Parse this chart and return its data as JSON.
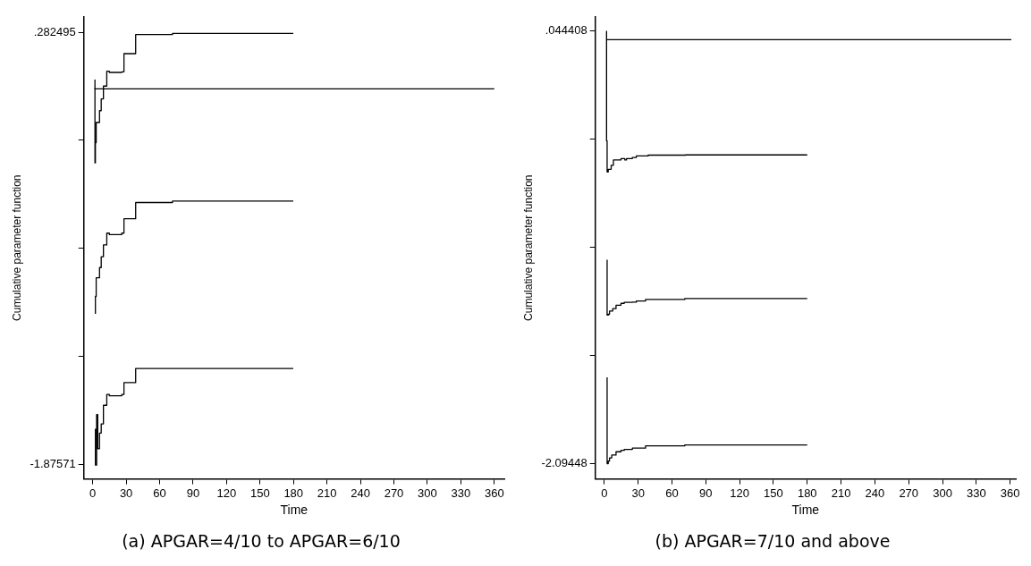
{
  "chart_data": [
    {
      "type": "step",
      "title": "(a) APGAR=4/10 to APGAR=6/10",
      "xlabel": "Time",
      "ylabel": "Cumulative parameter function",
      "xlim": [
        -8,
        369
      ],
      "xticks": [
        0,
        30,
        60,
        90,
        120,
        150,
        180,
        210,
        240,
        270,
        300,
        330,
        360
      ],
      "ylim": [
        -1.949,
        0.36
      ],
      "yticks": [
        {
          "value": -1.87571,
          "label": "-1.87571"
        },
        {
          "value": -1.33616,
          "label": null
        },
        {
          "value": -0.79661,
          "label": null
        },
        {
          "value": -0.25706,
          "label": null
        },
        {
          "value": 0.282495,
          "label": ".282495"
        }
      ],
      "grid": false,
      "series": [
        {
          "type": "line",
          "color": "#000000",
          "x": [
            1.5,
            360
          ],
          "values": [
            0,
            0
          ]
        },
        {
          "color": "#000000",
          "x": [
            2,
            2.4,
            3.1,
            6.1,
            7.6,
            9.6,
            12.6,
            14.9,
            26,
            28,
            38.5,
            71.5,
            81.8,
            179.8
          ],
          "values": [
            0.046,
            -0.37,
            -0.269,
            -0.168,
            -0.109,
            -0.05,
            0.014,
            0.088,
            0.082,
            0.085,
            0.176,
            0.271,
            0.277,
            0.277
          ]
        },
        {
          "color": "#000000",
          "x": [
            2.4,
            3.1,
            6.1,
            7.6,
            9.6,
            12.6,
            14.9,
            26,
            28,
            38.5,
            71.5,
            81.8,
            179.8
          ],
          "values": [
            -1.124,
            -1.037,
            -0.944,
            -0.893,
            -0.839,
            -0.78,
            -0.721,
            -0.728,
            -0.721,
            -0.649,
            -0.568,
            -0.561,
            -0.561
          ]
        },
        {
          "color": "#000000",
          "x": [
            2.4,
            3.5,
            4.5,
            6.1,
            7.6,
            9.6,
            12.6,
            14.9,
            26,
            28,
            38.5,
            71.5,
            179.8
          ],
          "values": [
            -1.698,
            -1.88,
            -1.627,
            -1.798,
            -1.72,
            -1.674,
            -1.581,
            -1.527,
            -1.534,
            -1.527,
            -1.468,
            -1.397,
            -1.397
          ]
        }
      ]
    },
    {
      "type": "step",
      "title": "(b) APGAR=7/10 and above",
      "xlabel": "Time",
      "ylabel": "Cumulative parameter function",
      "xlim": [
        -8,
        365
      ],
      "xticks": [
        0,
        30,
        60,
        90,
        120,
        150,
        180,
        210,
        240,
        270,
        300,
        330,
        360
      ],
      "ylim": [
        -2.169,
        0.113
      ],
      "yticks": [
        {
          "value": -2.09448,
          "label": "-2.09448"
        },
        {
          "value": -1.559758,
          "label": null
        },
        {
          "value": -1.025036,
          "label": null
        },
        {
          "value": -0.490314,
          "label": null
        },
        {
          "value": 0.044408,
          "label": ".044408"
        }
      ],
      "grid": false,
      "series": [
        {
          "type": "line",
          "color": "#000000",
          "x": [
            1.7,
            361
          ],
          "values": [
            0,
            0
          ]
        },
        {
          "color": "#000000",
          "x": [
            2,
            2.5,
            3.5,
            6.1,
            8.1,
            14.8,
            18.2,
            19.7,
            24.9,
            28.4,
            38.9,
            72,
            180
          ],
          "values": [
            0.044,
            -0.499,
            -0.653,
            -0.64,
            -0.62,
            -0.594,
            -0.587,
            -0.594,
            -0.587,
            -0.582,
            -0.574,
            -0.57,
            -0.569
          ]
        },
        {
          "color": "#000000",
          "x": [
            2.5,
            3.5,
            4.6,
            7.5,
            10.4,
            14.8,
            17.7,
            24.9,
            28.4,
            36.6,
            71.4,
            180
          ],
          "values": [
            -1.087,
            -1.36,
            -1.356,
            -1.34,
            -1.328,
            -1.311,
            -1.302,
            -1.297,
            -1.296,
            -1.29,
            -1.283,
            -1.278
          ]
        },
        {
          "color": "#000000",
          "x": [
            2.5,
            3.5,
            4.6,
            6.6,
            10.4,
            14.8,
            17.7,
            24.9,
            36.6,
            71.4,
            180
          ],
          "values": [
            -1.667,
            -2.094,
            -2.081,
            -2.065,
            -2.051,
            -2.035,
            -2.028,
            -2.023,
            -2.017,
            -2.006,
            -2.001
          ]
        }
      ]
    }
  ]
}
